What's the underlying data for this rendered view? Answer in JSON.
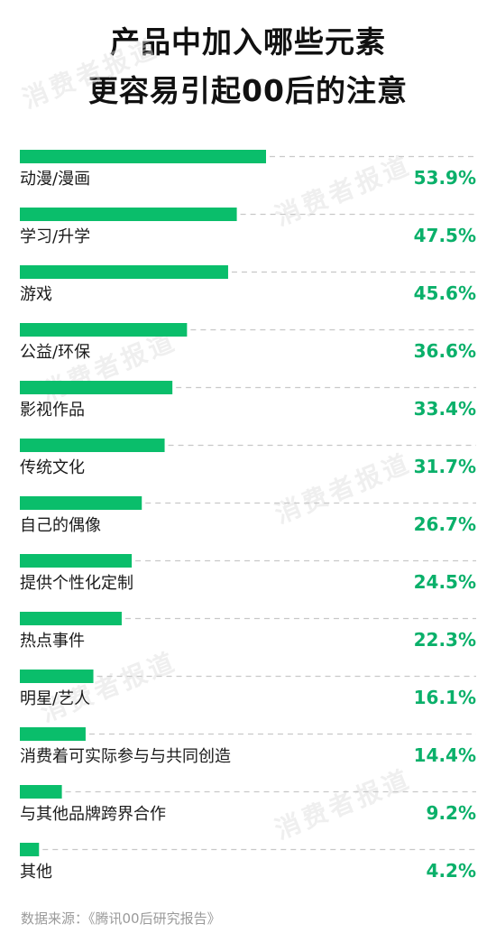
{
  "header": {
    "title_line1": "产品中加入哪些元素",
    "title_line2": "更容易引起00后的注意"
  },
  "watermark": {
    "text": "消费者报道"
  },
  "footer": {
    "source": "数据来源：《腾讯00后研究报告》"
  },
  "colors": {
    "bar": "#0abe6b",
    "value_text": "#0ab06a",
    "label_text": "#1a1a1a",
    "dash_line": "#c8c8c8"
  },
  "chart_data": {
    "type": "bar",
    "orientation": "horizontal",
    "categories": [
      "动漫/漫画",
      "学习/升学",
      "游戏",
      "公益/环保",
      "影视作品",
      "传统文化",
      "自己的偶像",
      "提供个性化定制",
      "热点事件",
      "明星/艺人",
      "消费着可实际参与与共同创造",
      "与其他品牌跨界合作",
      "其他"
    ],
    "values": [
      53.9,
      47.5,
      45.6,
      36.6,
      33.4,
      31.7,
      26.7,
      24.5,
      22.3,
      16.1,
      14.4,
      9.2,
      4.2
    ],
    "value_labels": [
      "53.9%",
      "47.5%",
      "45.6%",
      "36.6%",
      "33.4%",
      "31.7%",
      "26.7%",
      "24.5%",
      "22.3%",
      "16.1%",
      "14.4%",
      "9.2%",
      "4.2%"
    ],
    "unit": "%",
    "xlim": [
      0,
      100
    ]
  }
}
